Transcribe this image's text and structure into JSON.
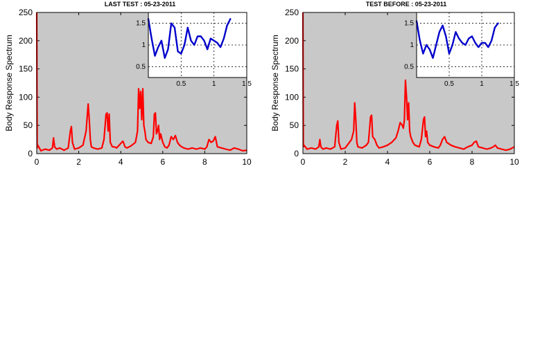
{
  "colors": {
    "main_bg": "#c8c8c8",
    "main_line": "#ff0000",
    "inset_line": "#0000cc",
    "grid": "#000000"
  },
  "chart_data": [
    {
      "id": "left",
      "type": "line",
      "title": "LAST TEST : 05-23-2011",
      "ylabel": "Body Response Spectrum",
      "xlabel": "",
      "xlim": [
        0,
        10
      ],
      "ylim": [
        0,
        250
      ],
      "xticks": [
        "0",
        "2",
        "4",
        "6",
        "8",
        "10"
      ],
      "yticks": [
        "0",
        "50",
        "100",
        "150",
        "200",
        "250"
      ],
      "grid": false,
      "series": [
        {
          "x": [
            0,
            0.02,
            0.05,
            0.2,
            0.4,
            0.6,
            0.75,
            0.8,
            0.85,
            0.95,
            1.1,
            1.3,
            1.5,
            1.6,
            1.65,
            1.7,
            1.8,
            2.0,
            2.2,
            2.35,
            2.45,
            2.5,
            2.55,
            2.6,
            2.7,
            2.9,
            3.1,
            3.2,
            3.3,
            3.35,
            3.4,
            3.45,
            3.5,
            3.6,
            3.7,
            3.8,
            3.9,
            4.0,
            4.1,
            4.15,
            4.2,
            4.3,
            4.5,
            4.7,
            4.8,
            4.85,
            4.9,
            4.95,
            5.0,
            5.05,
            5.1,
            5.15,
            5.2,
            5.3,
            5.45,
            5.55,
            5.6,
            5.65,
            5.7,
            5.75,
            5.8,
            5.85,
            5.9,
            6.0,
            6.1,
            6.2,
            6.3,
            6.4,
            6.5,
            6.6,
            6.7,
            6.8,
            6.9,
            7.0,
            7.2,
            7.4,
            7.6,
            7.8,
            8.0,
            8.1,
            8.2,
            8.3,
            8.4,
            8.5,
            8.6,
            8.8,
            9.0,
            9.2,
            9.4,
            9.6,
            9.8,
            10.0
          ],
          "y": [
            250,
            10,
            15,
            5,
            8,
            6,
            10,
            28,
            12,
            8,
            10,
            6,
            10,
            40,
            48,
            20,
            8,
            10,
            15,
            40,
            88,
            60,
            25,
            12,
            10,
            8,
            10,
            25,
            70,
            72,
            40,
            70,
            20,
            12,
            12,
            10,
            14,
            18,
            22,
            18,
            12,
            10,
            14,
            20,
            40,
            115,
            80,
            110,
            60,
            115,
            50,
            40,
            25,
            20,
            18,
            30,
            70,
            72,
            35,
            40,
            50,
            25,
            35,
            20,
            12,
            10,
            15,
            30,
            25,
            32,
            20,
            15,
            12,
            10,
            8,
            10,
            8,
            10,
            8,
            12,
            25,
            20,
            22,
            30,
            12,
            10,
            8,
            6,
            10,
            8,
            5,
            6
          ]
        }
      ],
      "inset": {
        "xlim": [
          0,
          1.5
        ],
        "ylim": [
          0.25,
          1.75
        ],
        "xticks": [
          "0.5",
          "1",
          "1.5"
        ],
        "yticks": [
          "0.5",
          "1",
          "1.5"
        ],
        "grid": true,
        "series": [
          {
            "x": [
              0.0,
              0.05,
              0.1,
              0.15,
              0.2,
              0.25,
              0.3,
              0.35,
              0.4,
              0.45,
              0.5,
              0.55,
              0.6,
              0.65,
              0.7,
              0.75,
              0.8,
              0.85,
              0.9,
              0.95,
              1.0,
              1.05,
              1.1,
              1.15,
              1.2,
              1.25
            ],
            "y": [
              1.6,
              1.15,
              0.75,
              0.95,
              1.1,
              0.7,
              0.9,
              1.5,
              1.4,
              0.85,
              0.8,
              1.0,
              1.4,
              1.1,
              1.0,
              1.2,
              1.2,
              1.1,
              0.9,
              1.15,
              1.1,
              1.05,
              0.95,
              1.15,
              1.45,
              1.6
            ]
          }
        ]
      }
    },
    {
      "id": "right",
      "type": "line",
      "title": "TEST BEFORE : 05-23-2011",
      "ylabel": "Body Response Spectrum",
      "xlabel": "",
      "xlim": [
        0,
        10
      ],
      "ylim": [
        0,
        250
      ],
      "xticks": [
        "0",
        "2",
        "4",
        "6",
        "8",
        "10"
      ],
      "yticks": [
        "0",
        "50",
        "100",
        "150",
        "200",
        "250"
      ],
      "grid": false,
      "series": [
        {
          "x": [
            0,
            0.02,
            0.05,
            0.2,
            0.4,
            0.6,
            0.75,
            0.8,
            0.85,
            0.95,
            1.1,
            1.3,
            1.5,
            1.6,
            1.65,
            1.7,
            1.8,
            2.0,
            2.2,
            2.3,
            2.4,
            2.45,
            2.5,
            2.55,
            2.6,
            2.8,
            3.0,
            3.1,
            3.2,
            3.25,
            3.3,
            3.4,
            3.5,
            3.6,
            3.8,
            4.0,
            4.2,
            4.4,
            4.5,
            4.6,
            4.7,
            4.75,
            4.8,
            4.85,
            4.9,
            4.95,
            5.0,
            5.05,
            5.1,
            5.2,
            5.3,
            5.5,
            5.6,
            5.7,
            5.75,
            5.8,
            5.85,
            5.9,
            6.0,
            6.2,
            6.4,
            6.5,
            6.6,
            6.7,
            6.8,
            7.0,
            7.2,
            7.4,
            7.6,
            7.8,
            8.0,
            8.1,
            8.2,
            8.3,
            8.5,
            8.7,
            8.9,
            9.0,
            9.1,
            9.2,
            9.4,
            9.6,
            9.8,
            9.9,
            10.0
          ],
          "y": [
            250,
            12,
            15,
            8,
            10,
            8,
            12,
            25,
            12,
            8,
            10,
            8,
            12,
            50,
            58,
            20,
            8,
            10,
            20,
            25,
            40,
            90,
            60,
            20,
            12,
            10,
            15,
            20,
            65,
            68,
            30,
            25,
            15,
            10,
            12,
            15,
            20,
            28,
            40,
            55,
            50,
            45,
            60,
            130,
            100,
            60,
            90,
            40,
            30,
            20,
            15,
            12,
            25,
            60,
            65,
            30,
            40,
            20,
            15,
            12,
            10,
            15,
            25,
            30,
            20,
            15,
            12,
            10,
            8,
            12,
            15,
            20,
            22,
            12,
            10,
            8,
            10,
            12,
            15,
            10,
            8,
            6,
            8,
            10,
            12
          ]
        }
      ],
      "inset": {
        "xlim": [
          0,
          1.5
        ],
        "ylim": [
          0.25,
          1.75
        ],
        "xticks": [
          "0.5",
          "1",
          "1.5"
        ],
        "yticks": [
          "0.5",
          "1",
          "1.5"
        ],
        "grid": true,
        "series": [
          {
            "x": [
              0.0,
              0.05,
              0.1,
              0.15,
              0.2,
              0.25,
              0.3,
              0.35,
              0.4,
              0.45,
              0.5,
              0.55,
              0.6,
              0.65,
              0.7,
              0.75,
              0.8,
              0.85,
              0.9,
              0.95,
              1.0,
              1.05,
              1.1,
              1.15,
              1.2,
              1.25
            ],
            "y": [
              1.55,
              1.1,
              0.8,
              1.0,
              0.9,
              0.7,
              1.0,
              1.3,
              1.45,
              1.2,
              0.8,
              1.0,
              1.3,
              1.15,
              1.05,
              1.0,
              1.15,
              1.2,
              1.05,
              0.95,
              1.05,
              1.05,
              0.95,
              1.1,
              1.4,
              1.5
            ]
          }
        ]
      }
    }
  ]
}
